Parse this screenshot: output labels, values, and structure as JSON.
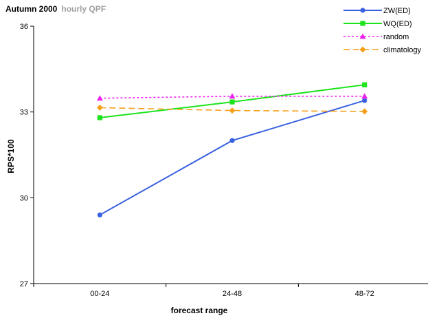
{
  "header": {
    "title": "Autumn 2000",
    "subtitle": "hourly QPF"
  },
  "chart_data": {
    "type": "line",
    "title": "Autumn 2000",
    "subtitle": "hourly QPF",
    "xlabel": "forecast range",
    "ylabel": "RPS*100",
    "categories": [
      "00-24",
      "24-48",
      "48-72"
    ],
    "ylim": [
      27,
      36
    ],
    "yticks": [
      27,
      30,
      33,
      36
    ],
    "grid": false,
    "legend_position": "top-right",
    "series": [
      {
        "name": "ZW(ED)",
        "values": [
          29.4,
          32.0,
          33.4
        ],
        "color": "#3a62e0",
        "dash": "solid",
        "marker": "circle"
      },
      {
        "name": "WQ(ED)",
        "values": [
          32.8,
          33.35,
          33.95
        ],
        "color": "#1de31d",
        "dash": "solid",
        "marker": "square"
      },
      {
        "name": "random",
        "values": [
          33.48,
          33.55,
          33.55
        ],
        "color": "#ee22ee",
        "dash": "dot",
        "marker": "triangle"
      },
      {
        "name": "climatology",
        "values": [
          33.15,
          33.05,
          33.02
        ],
        "color": "#f5a01a",
        "dash": "dash",
        "marker": "diamond"
      }
    ]
  }
}
